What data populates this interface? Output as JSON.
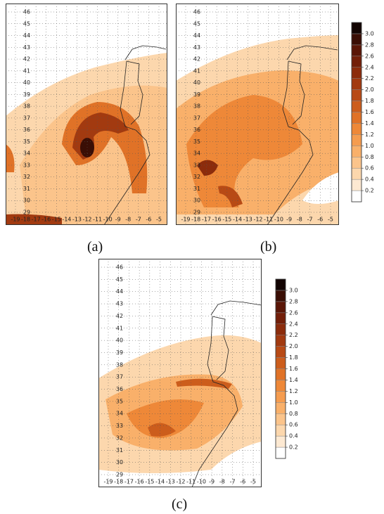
{
  "panels": [
    {
      "label": "(a)"
    },
    {
      "label": "(b)"
    },
    {
      "label": "(c)"
    }
  ],
  "lat_labels": [
    46,
    45,
    44,
    43,
    42,
    41,
    40,
    39,
    38,
    37,
    36,
    35,
    34,
    33,
    32,
    31,
    30,
    29
  ],
  "lon_labels": [
    -19,
    -18,
    -17,
    -16,
    -15,
    -14,
    -13,
    -12,
    -11,
    -10,
    -9,
    -8,
    -7,
    -6,
    -5
  ],
  "colorbar": {
    "lim": [
      0,
      3.2
    ],
    "ticks": [
      0.2,
      0.4,
      0.6,
      0.8,
      {
        "value": 1,
        "label": "1.0"
      },
      1.2,
      1.4,
      1.6,
      1.8,
      {
        "value": 2,
        "label": "2.0"
      },
      2.2,
      2.4,
      2.6,
      2.8,
      {
        "value": 3,
        "label": "3.0"
      }
    ],
    "colors": [
      "#ffffff",
      "#fde9d2",
      "#fcd7ad",
      "#fbc48b",
      "#f9b06a",
      "#f59c4f",
      "#ee8838",
      "#e07227",
      "#cc5d1c",
      "#b84a15",
      "#a23a10",
      "#8c2c0c",
      "#731f09",
      "#5a1607",
      "#3a0e05",
      "#120402"
    ]
  }
}
